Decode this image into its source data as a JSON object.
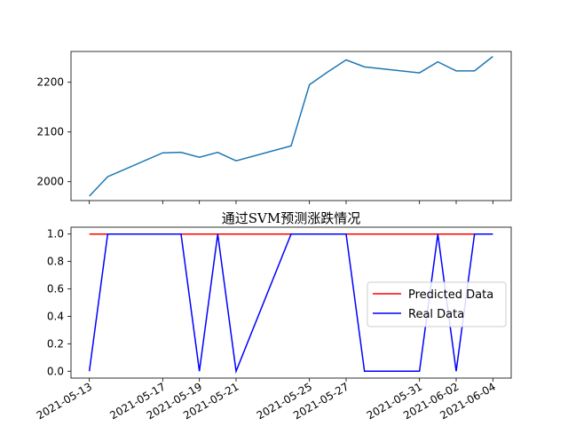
{
  "chart_data": [
    {
      "type": "line",
      "title": "",
      "xlabel": "",
      "ylabel": "",
      "x_dates": [
        "2021-05-13",
        "2021-05-14",
        "2021-05-17",
        "2021-05-18",
        "2021-05-19",
        "2021-05-20",
        "2021-05-21",
        "2021-05-24",
        "2021-05-25",
        "2021-05-26",
        "2021-05-27",
        "2021-05-28",
        "2021-05-31",
        "2021-06-01",
        "2021-06-02",
        "2021-06-03",
        "2021-06-04"
      ],
      "series": [
        {
          "values": [
            1971,
            2010,
            2058,
            2059,
            2049,
            2059,
            2042,
            2072,
            2195,
            2221,
            2245,
            2231,
            2219,
            2241,
            2223,
            2223,
            2252
          ],
          "color": "#1f77b4"
        }
      ],
      "yticks": [
        "2000",
        "2100",
        "2200"
      ],
      "ylim": [
        1962,
        2262
      ],
      "xtick_labels_shown": false
    },
    {
      "type": "line",
      "title": "通过SVM预测涨跌情况",
      "xlabel": "",
      "ylabel": "",
      "x_dates": [
        "2021-05-13",
        "2021-05-14",
        "2021-05-17",
        "2021-05-18",
        "2021-05-19",
        "2021-05-20",
        "2021-05-21",
        "2021-05-24",
        "2021-05-25",
        "2021-05-26",
        "2021-05-27",
        "2021-05-28",
        "2021-05-31",
        "2021-06-01",
        "2021-06-02",
        "2021-06-03",
        "2021-06-04"
      ],
      "series": [
        {
          "name": "Predicted Data",
          "color": "#ff0000",
          "values": [
            1,
            1,
            1,
            1,
            1,
            1,
            1,
            1,
            1,
            1,
            1,
            1,
            1,
            1,
            1,
            1,
            1
          ]
        },
        {
          "name": "Real Data",
          "color": "#0000ff",
          "values": [
            0,
            1,
            1,
            1,
            0,
            1,
            0,
            1,
            1,
            1,
            1,
            0,
            0,
            1,
            0,
            1,
            1
          ]
        }
      ],
      "yticks": [
        "0.0",
        "0.2",
        "0.4",
        "0.6",
        "0.8",
        "1.0"
      ],
      "ylim": [
        -0.05,
        1.05
      ],
      "xtick_labels": [
        "2021-05-13",
        "2021-05-17",
        "2021-05-19",
        "2021-05-21",
        "2021-05-25",
        "2021-05-27",
        "2021-05-31",
        "2021-06-02",
        "2021-06-04"
      ],
      "xtick_rotation_deg": 30,
      "legend_location": "center-right"
    }
  ]
}
